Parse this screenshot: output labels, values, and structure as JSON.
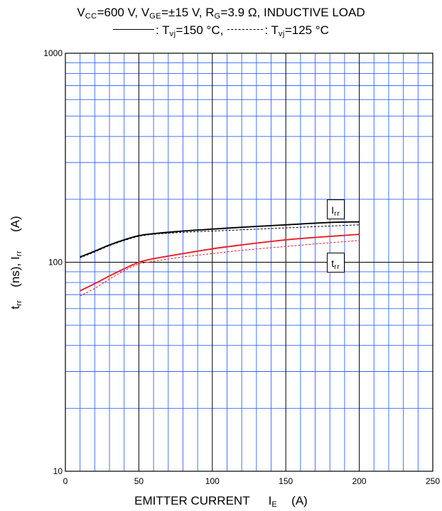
{
  "caption": {
    "line1": {
      "p1": "V",
      "s1": "CC",
      "p2": "=600 V, V",
      "s2": "GE",
      "p3": "=±15 V, R",
      "s3": "G",
      "p4": "=3.9 Ω, INDUCTIVE LOAD"
    },
    "line2": {
      "solid_text": ": T",
      "solid_sub": "vj",
      "solid_value": "=150 °C,",
      "dashed_text": ": T",
      "dashed_sub": "vj",
      "dashed_value": "=125 °C"
    }
  },
  "colors": {
    "grid_major": "#000000",
    "grid_minor": "#3366ff",
    "irr": "#000000",
    "trr": "#ee1c24",
    "background": "#ffffff"
  },
  "chart_data": {
    "type": "line",
    "title": "",
    "xlabel": {
      "main": "EMITTER CURRENT",
      "sym": "I",
      "sub": "E",
      "unit": "(A)"
    },
    "ylabel": {
      "t": "t",
      "t_sub": "rr",
      "mid": "(ns), I",
      "i_sub": "rr",
      "unit": "(A)"
    },
    "xlim": [
      0,
      250
    ],
    "ylim": [
      10,
      1000
    ],
    "yscale": "log",
    "x_ticks": [
      "0",
      "50",
      "100",
      "150",
      "200",
      "250"
    ],
    "y_ticks": [
      "10",
      "100",
      "1000"
    ],
    "grid": true,
    "series": [
      {
        "name": "Irr",
        "tvj": "150 °C",
        "style": "solid",
        "color": "#000000",
        "x": [
          10,
          20,
          30,
          40,
          50,
          60,
          80,
          100,
          120,
          150,
          180,
          200
        ],
        "y": [
          106,
          113,
          121,
          128,
          134,
          137,
          141,
          144,
          147,
          151,
          155,
          156
        ]
      },
      {
        "name": "Irr",
        "tvj": "125 °C",
        "style": "dashed",
        "color": "#000000",
        "x": [
          10,
          20,
          30,
          40,
          50,
          60,
          80,
          100,
          120,
          150,
          180,
          200
        ],
        "y": [
          105,
          112,
          120,
          127,
          133,
          136,
          139,
          141,
          143,
          146,
          149,
          151
        ]
      },
      {
        "name": "trr",
        "tvj": "150 °C",
        "style": "solid",
        "color": "#ee1c24",
        "x": [
          10,
          20,
          30,
          40,
          50,
          60,
          80,
          100,
          120,
          150,
          180,
          200
        ],
        "y": [
          73,
          79,
          86,
          93,
          100,
          104,
          110,
          116,
          121,
          128,
          133,
          136
        ]
      },
      {
        "name": "trr",
        "tvj": "125 °C",
        "style": "dashed",
        "color": "#ee1c24",
        "x": [
          10,
          20,
          30,
          40,
          50,
          60,
          80,
          100,
          120,
          150,
          180,
          200
        ],
        "y": [
          69,
          75,
          83,
          91,
          98,
          101,
          106,
          110,
          114,
          119,
          124,
          127
        ]
      }
    ],
    "annotations": [
      {
        "label": "I",
        "sub": "rr",
        "x": 180,
        "y": 180
      },
      {
        "label": "t",
        "sub": "rr",
        "x": 180,
        "y": 100
      }
    ]
  }
}
